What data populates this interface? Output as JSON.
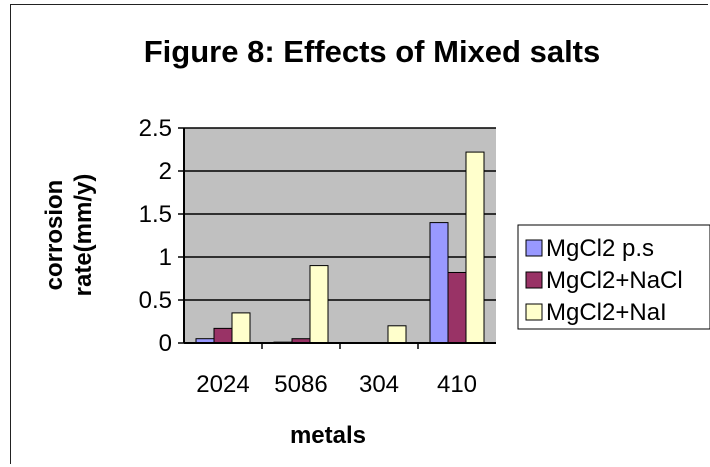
{
  "chart_data": {
    "type": "bar",
    "title": "Figure 8: Effects of Mixed salts",
    "xlabel": "metals",
    "ylabel_lines": [
      "corrosion",
      "rate(mm/y)"
    ],
    "categories": [
      "2024",
      "5086",
      "304",
      "410"
    ],
    "ylim": [
      0,
      2.5
    ],
    "yticks": [
      "0",
      "0.5",
      "1",
      "1.5",
      "2",
      "2.5"
    ],
    "grid": true,
    "legend_position": "right",
    "series": [
      {
        "name": "MgCl2 p.s",
        "values": [
          0.05,
          0.01,
          0.0,
          1.4
        ],
        "color": "#9999ff"
      },
      {
        "name": "MgCl2+NaCl",
        "values": [
          0.17,
          0.05,
          0.0,
          0.82
        ],
        "color": "#993366"
      },
      {
        "name": "MgCl2+NaI",
        "values": [
          0.35,
          0.9,
          0.2,
          2.22
        ],
        "color": "#ffffcc"
      }
    ]
  }
}
